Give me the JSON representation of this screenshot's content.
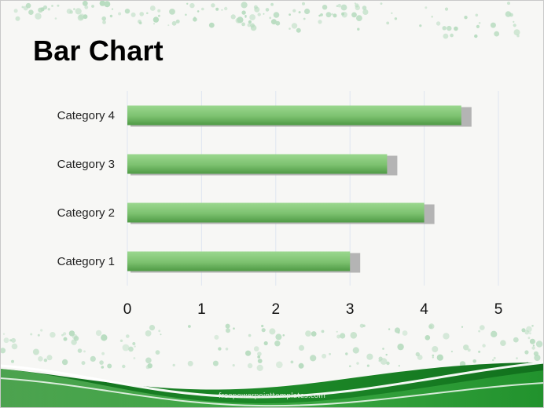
{
  "slide": {
    "title": "Bar Chart",
    "footer_text": "freepowerpointtemplates.com"
  },
  "theme": {
    "bar_color_light": "#9bd88f",
    "bar_color_dark": "#4f9a45",
    "shadow_color": "#a8a8a8",
    "grid_color": "#dfe6f1",
    "wave_dark": "#1a7a25",
    "wave_light": "#2fae3a",
    "dot_color": "#b8dcc0"
  },
  "chart_data": {
    "type": "bar",
    "orientation": "horizontal",
    "categories": [
      "Category 1",
      "Category 2",
      "Category 3",
      "Category 4"
    ],
    "values": [
      3,
      4,
      3.5,
      4.5
    ],
    "xlim": [
      0,
      5
    ],
    "xticks": [
      "0",
      "1",
      "2",
      "3",
      "4",
      "5"
    ],
    "grid": true,
    "title": "",
    "xlabel": "",
    "ylabel": ""
  }
}
